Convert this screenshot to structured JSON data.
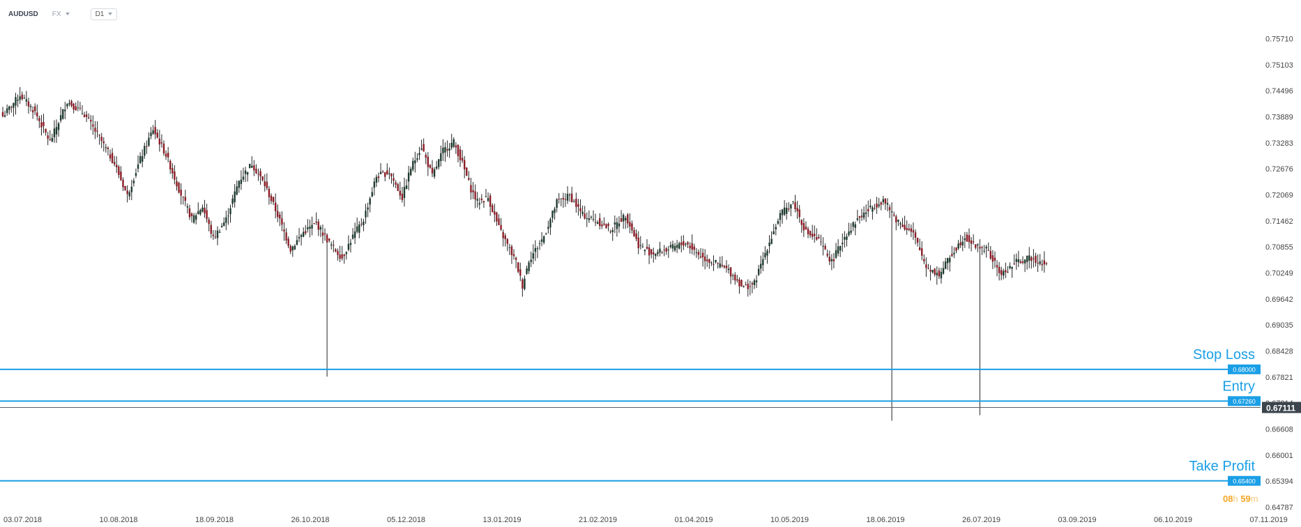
{
  "header": {
    "symbol": "AUDUSD",
    "market": "FX",
    "timeframe": "D1"
  },
  "colors": {
    "accent": "#1a9fe6",
    "bull": "#1e3b2e",
    "bear": "#8a1c26",
    "wick": "#222222",
    "price_label_bg": "#3c444d",
    "countdown": "#f5a623"
  },
  "countdown": {
    "hours": "08",
    "h": "h",
    "minutes": "59",
    "m": "m"
  },
  "chart_data": {
    "type": "candlestick",
    "y_ticks": [
      "0.75710",
      "0.75103",
      "0.74496",
      "0.73889",
      "0.73283",
      "0.72676",
      "0.72069",
      "0.71462",
      "0.70855",
      "0.70249",
      "0.69642",
      "0.69035",
      "0.68428",
      "0.67821",
      "0.67214",
      "0.66608",
      "0.66001",
      "0.65394",
      "0.64787"
    ],
    "x_ticks": [
      "03.07.2018",
      "10.08.2018",
      "18.09.2018",
      "26.10.2018",
      "05.12.2018",
      "13.01.2019",
      "21.02.2019",
      "01.04.2019",
      "10.05.2019",
      "18.06.2019",
      "26.07.2019",
      "03.09.2019",
      "06.10.2019",
      "07.11.2019"
    ],
    "ylim": [
      0.64787,
      0.7571
    ],
    "current_price": {
      "value": 0.67111,
      "label": "0.67111"
    },
    "levels": [
      {
        "name": "Stop Loss",
        "value": 0.68,
        "label": "0.68000"
      },
      {
        "name": "Entry",
        "value": 0.6726,
        "label": "0.67260"
      },
      {
        "name": "Take Profit",
        "value": 0.654,
        "label": "0.65400"
      }
    ],
    "close_path": [
      [
        0,
        0.739
      ],
      [
        8,
        0.744
      ],
      [
        15,
        0.74
      ],
      [
        22,
        0.733
      ],
      [
        30,
        0.7425
      ],
      [
        38,
        0.7395
      ],
      [
        45,
        0.734
      ],
      [
        52,
        0.728
      ],
      [
        58,
        0.7205
      ],
      [
        64,
        0.729
      ],
      [
        70,
        0.736
      ],
      [
        76,
        0.73
      ],
      [
        82,
        0.722
      ],
      [
        88,
        0.715
      ],
      [
        93,
        0.718
      ],
      [
        98,
        0.7105
      ],
      [
        104,
        0.715
      ],
      [
        110,
        0.724
      ],
      [
        116,
        0.728
      ],
      [
        122,
        0.723
      ],
      [
        128,
        0.716
      ],
      [
        134,
        0.708
      ],
      [
        140,
        0.712
      ],
      [
        146,
        0.714
      ],
      [
        152,
        0.7095
      ],
      [
        158,
        0.706
      ],
      [
        163,
        0.711
      ],
      [
        168,
        0.715
      ],
      [
        174,
        0.725
      ],
      [
        180,
        0.726
      ],
      [
        186,
        0.72
      ],
      [
        190,
        0.727
      ],
      [
        195,
        0.732
      ],
      [
        200,
        0.725
      ],
      [
        205,
        0.731
      ],
      [
        210,
        0.733
      ],
      [
        214,
        0.728
      ],
      [
        218,
        0.722
      ],
      [
        221,
        0.719
      ],
      [
        226,
        0.72
      ],
      [
        231,
        0.713
      ],
      [
        236,
        0.708
      ],
      [
        239,
        0.705
      ],
      [
        242,
        0.6995
      ],
      [
        245,
        0.7055
      ],
      [
        252,
        0.711
      ],
      [
        258,
        0.719
      ],
      [
        264,
        0.7205
      ],
      [
        270,
        0.716
      ],
      [
        277,
        0.7145
      ],
      [
        283,
        0.7125
      ],
      [
        290,
        0.716
      ],
      [
        296,
        0.709
      ],
      [
        302,
        0.707
      ],
      [
        310,
        0.708
      ],
      [
        318,
        0.7095
      ],
      [
        326,
        0.706
      ],
      [
        333,
        0.7045
      ],
      [
        338,
        0.703
      ],
      [
        345,
        0.699
      ],
      [
        350,
        0.7
      ],
      [
        356,
        0.7085
      ],
      [
        362,
        0.716
      ],
      [
        368,
        0.719
      ],
      [
        374,
        0.712
      ],
      [
        380,
        0.71
      ],
      [
        386,
        0.705
      ],
      [
        392,
        0.711
      ],
      [
        398,
        0.715
      ],
      [
        404,
        0.7175
      ],
      [
        410,
        0.7195
      ],
      [
        416,
        0.715
      ],
      [
        424,
        0.7115
      ],
      [
        430,
        0.704
      ],
      [
        436,
        0.702
      ],
      [
        442,
        0.707
      ],
      [
        448,
        0.711
      ],
      [
        452,
        0.709
      ],
      [
        458,
        0.708
      ],
      [
        465,
        0.702
      ],
      [
        472,
        0.705
      ],
      [
        479,
        0.706
      ],
      [
        486,
        0.7045
      ]
    ],
    "spikes": [
      {
        "day": 151,
        "low": 0.6783
      },
      {
        "day": 414,
        "low": 0.668
      },
      {
        "day": 455,
        "low": 0.6693
      }
    ]
  }
}
